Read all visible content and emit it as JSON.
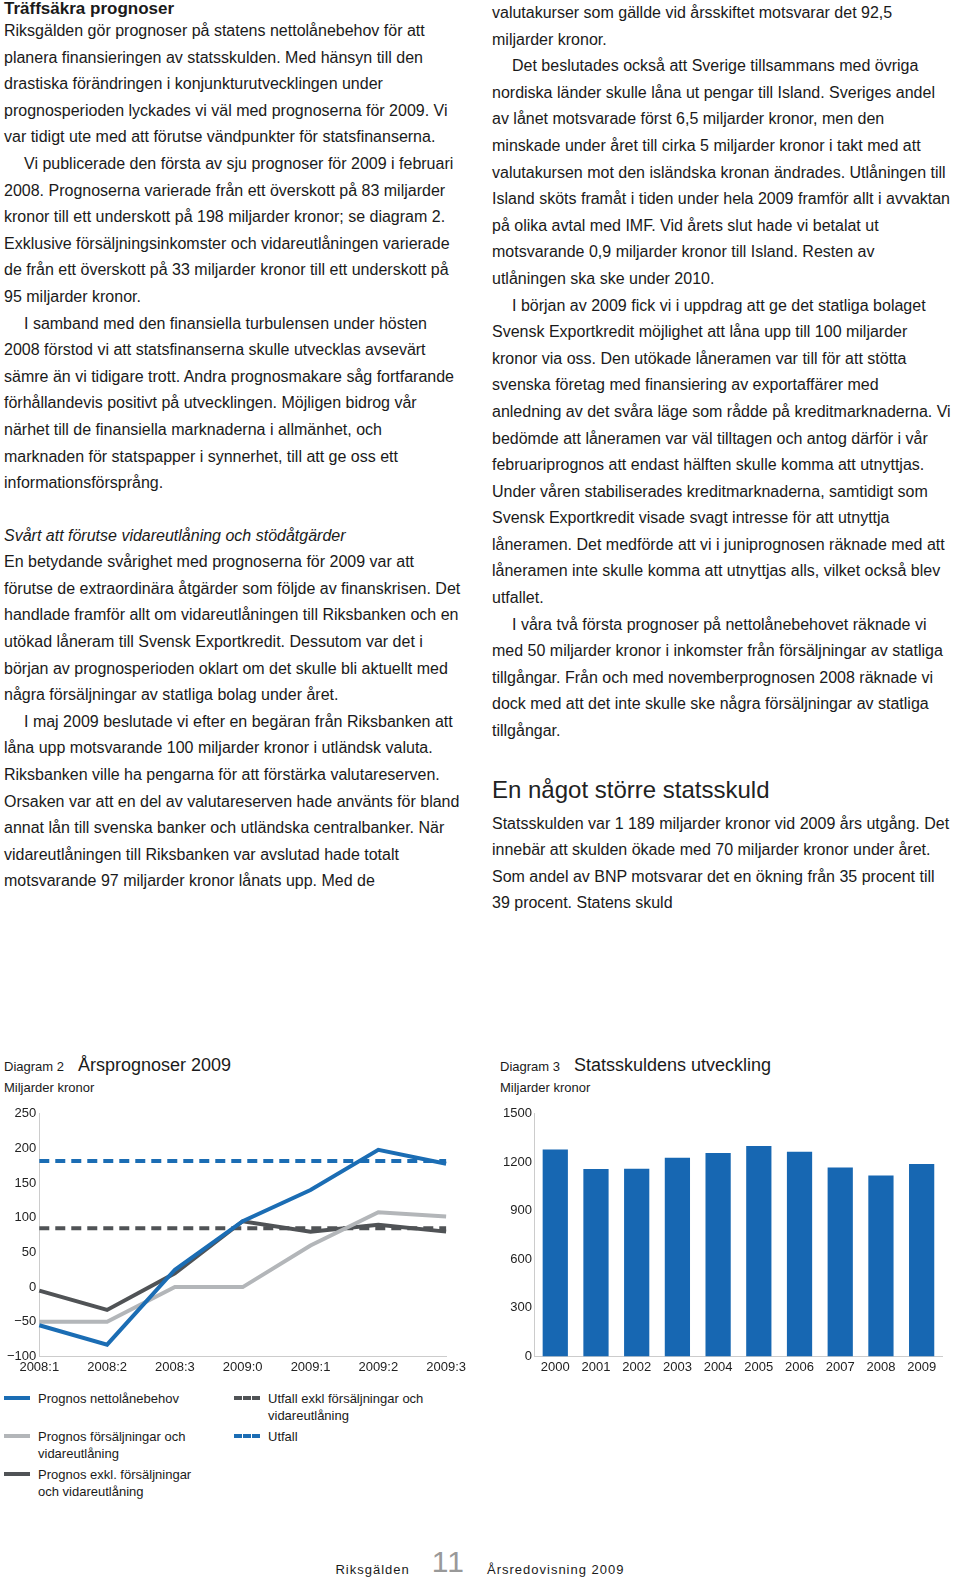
{
  "document": {
    "blocks": [
      {
        "kind": "heading",
        "text": "Träffsäkra prognoser"
      },
      {
        "kind": "paragraph",
        "text": "Riksgälden gör prognoser på statens nettolånebehov för att planera finansieringen av statsskulden. Med hänsyn till den drastiska förändringen i konjunkturutvecklingen under prognosperioden lyckades vi väl med prognoserna för 2009. Vi var tidigt ute med att förutse vändpunkter för statsfinanserna."
      },
      {
        "kind": "paragraph",
        "text": "Vi publicerade den första av sju prognoser för 2009 i februari 2008. Prognoserna varierade från ett överskott på 83 miljarder kronor till ett underskott på 198 miljarder kronor; se diagram 2. Exklusive försäljningsinkomster och vidareutlåningen varierade de från ett överskott på 33 miljarder kronor till ett underskott på 95 miljarder kronor."
      },
      {
        "kind": "paragraph",
        "text": "I samband med den finansiella turbulensen under hösten 2008 förstod vi att statsfinanserna skulle utvecklas avsevärt sämre än vi tidigare trott. Andra prognosmakare såg fortfarande förhållandevis positivt på utvecklingen. Möjligen bidrog vår närhet till de finansiella marknaderna i allmänhet, och marknaden för statspapper i synnerhet, till att ge oss ett informationsförsprång."
      },
      {
        "kind": "subheading",
        "text": "Svårt att förutse vidareutlåning och stödåtgärder"
      },
      {
        "kind": "paragraph",
        "text": "En betydande svårighet med prognoserna för 2009 var att förutse de extraordinära åtgärder som följde av finanskrisen. Det handlade framför allt om vidareutlåningen till Riksbanken och en utökad låneram till Svensk Exportkredit. Dessutom var det i början av prognosperioden oklart om det skulle bli aktuellt med några försäljningar av statliga bolag under året."
      },
      {
        "kind": "paragraph",
        "text": "I maj 2009 beslutade vi efter en begäran från Riksbanken att låna upp motsvarande 100 miljarder kronor i utländsk valuta. Riksbanken ville ha pengarna för att förstärka valutareserven. Orsaken var att en del av valutareserven hade använts för bland annat lån till svenska banker och utländska centralbanker. När vidareutlåningen till Riksbanken var avslutad hade totalt motsvarande 97 miljarder kronor lånats upp. Med de valutakurser som gällde vid årsskiftet motsvarar det 92,5 miljarder kronor."
      },
      {
        "kind": "paragraph",
        "text": "Det beslutades också att Sverige tillsammans med övriga nordiska länder skulle låna ut pengar till Island. Sveriges andel av lånet motsvarade först 6,5 miljarder kronor, men den minskade under året till cirka 5 miljarder kronor i takt med att valutakursen mot den isländska kronan ändrades. Utlåningen till Island sköts framåt i tiden under hela 2009 framför allt i avvaktan på olika avtal med IMF. Vid årets slut hade vi betalat ut motsvarande 0,9 miljarder kronor till Island. Resten av utlåningen ska ske under 2010."
      },
      {
        "kind": "paragraph",
        "text": "I början av 2009 fick vi i uppdrag att ge det statliga bolaget Svensk Exportkredit möjlighet att låna upp till 100 miljarder kronor via oss. Den utökade låneramen var till för att stötta svenska företag med finansiering av exportaffärer med anledning av det svåra läge som rådde på kreditmarknaderna. Vi bedömde att låneramen var väl tilltagen och antog därför i vår februariprognos att endast hälften skulle komma att utnyttjas. Under våren stabiliserades kreditmarknaderna, samtidigt som Svensk Exportkredit visade svagt intresse för att utnyttja låneramen. Det medförde att vi i juniprognosen räknade med att låneramen inte skulle komma att utnyttjas alls, vilket också blev utfallet."
      },
      {
        "kind": "paragraph",
        "text": "I våra två första prognoser på nettolånebehovet räknade vi med 50 miljarder kronor i inkomster från försäljningar av statliga tillgångar. Från och med novemberprognosen 2008 räknade vi dock med att det inte skulle ske några försäljningar av statliga tillgångar."
      },
      {
        "kind": "section_heading",
        "text": "En något större statsskuld"
      },
      {
        "kind": "paragraph",
        "text": "Statsskulden var 1 189 miljarder kronor vid 2009 års utgång. Det innebär att skulden ökade med 70 miljarder kronor under året. Som andel av BNP motsvarar det en ökning från 35 procent till 39 procent. Statens skuld"
      }
    ]
  },
  "chart_data": [
    {
      "type": "line",
      "figure_label": "Diagram 2",
      "title": "Årsprognoser 2009",
      "y_label": "Miljarder kronor",
      "categories": [
        "2008:1",
        "2008:2",
        "2008:3",
        "2009:0",
        "2009:1",
        "2009:2",
        "2009:3"
      ],
      "series": [
        {
          "name": "Prognos nettolånebehov",
          "color": "#1b6db4",
          "line_style": "solid",
          "values": [
            -55,
            -83,
            25,
            95,
            140,
            198,
            178
          ]
        },
        {
          "name": "Prognos försäljningar och vidareutlåning",
          "color": "#b3b6b9",
          "line_style": "solid",
          "values": [
            -50,
            -50,
            0,
            0,
            60,
            108,
            102
          ]
        },
        {
          "name": "Prognos exkl. försäljningar och vidareutlåning",
          "color": "#505356",
          "line_style": "solid",
          "values": [
            -5,
            -33,
            20,
            95,
            80,
            90,
            80
          ]
        },
        {
          "name": "Utfall exkl försäljningar och vidareutlåning",
          "color": "#505356",
          "line_style": "dashed",
          "values": [
            85,
            85,
            85,
            85,
            85,
            85,
            85
          ]
        },
        {
          "name": "Utfall",
          "color": "#1b6db4",
          "line_style": "dashed",
          "values": [
            182,
            182,
            182,
            182,
            182,
            182,
            182
          ]
        }
      ],
      "ylim": [
        -100,
        250
      ],
      "yticks": [
        {
          "value": -100,
          "label": "−100"
        },
        {
          "value": -50,
          "label": "−50"
        },
        0,
        50,
        100,
        150,
        200,
        250
      ],
      "grid": false,
      "legend": "bottom"
    },
    {
      "type": "bar",
      "figure_label": "Diagram 3",
      "title": "Statsskuldens utveckling",
      "y_label": "Miljarder kronor",
      "categories": [
        "2000",
        "2001",
        "2002",
        "2003",
        "2004",
        "2005",
        "2006",
        "2007",
        "2008",
        "2009"
      ],
      "values": [
        1280,
        1158,
        1160,
        1228,
        1258,
        1301,
        1265,
        1168,
        1119,
        1189
      ],
      "color": "#1767b2",
      "ylim": [
        0,
        1500
      ],
      "yticks": [
        0,
        300,
        600,
        900,
        1200,
        1500
      ],
      "grid": false
    }
  ],
  "footer": {
    "publisher": "Riksgälden",
    "page": 11,
    "publication": "Årsredovisning 2009"
  }
}
